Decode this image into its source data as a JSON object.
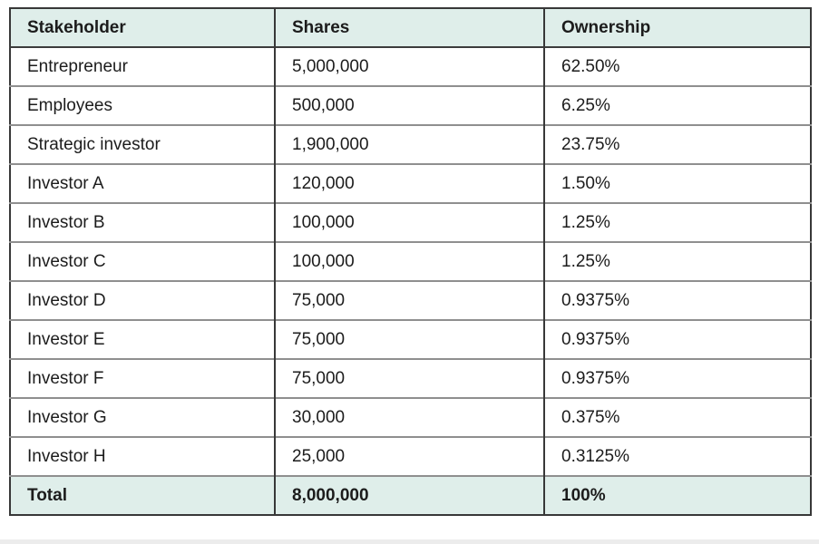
{
  "colors": {
    "header_bg": "#dfeeea",
    "row_bg": "#ffffff",
    "outer_border": "#383838",
    "column_border": "#383838",
    "row_border": "#8f8f8f",
    "header_divider": "#3c3c3c",
    "text": "#1c1c1c",
    "page_bg": "#ffffff",
    "bottom_strip": "#ececec"
  },
  "table": {
    "columns": [
      "Stakeholder",
      "Shares",
      "Ownership"
    ],
    "rows": [
      [
        "Entrepreneur",
        "5,000,000",
        "62.50%"
      ],
      [
        "Employees",
        "500,000",
        "6.25%"
      ],
      [
        "Strategic investor",
        "1,900,000",
        "23.75%"
      ],
      [
        "Investor A",
        "120,000",
        "1.50%"
      ],
      [
        "Investor B",
        "100,000",
        "1.25%"
      ],
      [
        "Investor C",
        "100,000",
        "1.25%"
      ],
      [
        "Investor D",
        "75,000",
        "0.9375%"
      ],
      [
        "Investor E",
        "75,000",
        "0.9375%"
      ],
      [
        "Investor F",
        "75,000",
        "0.9375%"
      ],
      [
        "Investor G",
        "30,000",
        "0.375%"
      ],
      [
        "Investor H",
        "25,000",
        "0.3125%"
      ]
    ],
    "total": [
      "Total",
      "8,000,000",
      "100%"
    ]
  }
}
